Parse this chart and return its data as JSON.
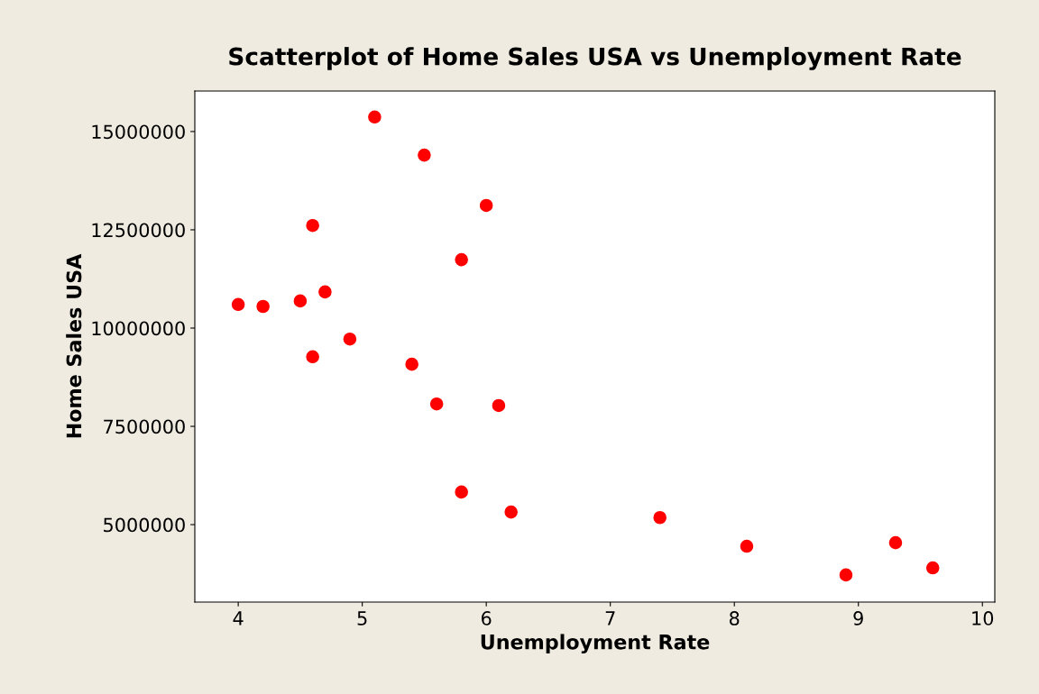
{
  "chart_data": {
    "type": "scatter",
    "title": "Scatterplot of Home Sales USA vs Unemployment Rate",
    "xlabel": "Unemployment Rate",
    "ylabel": "Home Sales USA",
    "x": [
      4.0,
      4.2,
      4.5,
      4.7,
      4.6,
      4.6,
      4.9,
      5.1,
      5.4,
      5.5,
      5.6,
      5.8,
      6.0,
      6.1,
      5.8,
      6.2,
      7.4,
      8.1,
      8.9,
      9.3,
      9.6
    ],
    "series": [
      {
        "color": "#ff0000",
        "values": [
          10600000,
          10550000,
          10690000,
          10920000,
          12610000,
          9270000,
          9720000,
          15370000,
          9080000,
          14400000,
          8070000,
          11740000,
          13120000,
          8030000,
          5830000,
          5320000,
          5180000,
          4450000,
          3720000,
          4540000,
          3900000
        ]
      }
    ],
    "xlim": [
      3.65,
      10.1
    ],
    "ylim": [
      3030000,
      16030000
    ],
    "xticks": [
      4,
      5,
      6,
      7,
      8,
      9,
      10
    ],
    "yticks": [
      5000000,
      7500000,
      10000000,
      12500000,
      15000000
    ],
    "marker": "circle",
    "grid": false,
    "legend": false
  }
}
